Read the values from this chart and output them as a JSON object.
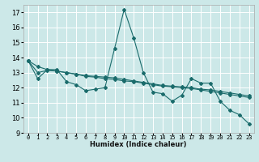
{
  "xlabel": "Humidex (Indice chaleur)",
  "xlim": [
    -0.5,
    23.5
  ],
  "ylim": [
    9,
    17.5
  ],
  "yticks": [
    9,
    10,
    11,
    12,
    13,
    14,
    15,
    16,
    17
  ],
  "xticks": [
    0,
    1,
    2,
    3,
    4,
    5,
    6,
    7,
    8,
    9,
    10,
    11,
    12,
    13,
    14,
    15,
    16,
    17,
    18,
    19,
    20,
    21,
    22,
    23
  ],
  "bg_color": "#cce8e8",
  "grid_color": "#ffffff",
  "line_color": "#1a6b6b",
  "series": [
    [
      13.8,
      12.6,
      13.2,
      13.2,
      12.4,
      12.2,
      11.8,
      11.9,
      12.0,
      14.6,
      17.2,
      15.3,
      13.0,
      11.7,
      11.6,
      11.1,
      11.5,
      12.6,
      12.3,
      12.3,
      11.1,
      10.5,
      10.2,
      9.6
    ],
    [
      13.8,
      13.0,
      13.15,
      13.1,
      13.0,
      12.9,
      12.75,
      12.7,
      12.6,
      12.55,
      12.45,
      12.4,
      12.3,
      12.2,
      12.1,
      12.05,
      12.0,
      11.95,
      11.85,
      11.75,
      11.65,
      11.55,
      11.45,
      11.35
    ],
    [
      13.8,
      13.4,
      13.2,
      13.1,
      13.0,
      12.9,
      12.8,
      12.75,
      12.7,
      12.65,
      12.55,
      12.45,
      12.35,
      12.25,
      12.15,
      12.1,
      12.05,
      12.0,
      11.9,
      11.85,
      11.75,
      11.65,
      11.55,
      11.45
    ]
  ]
}
